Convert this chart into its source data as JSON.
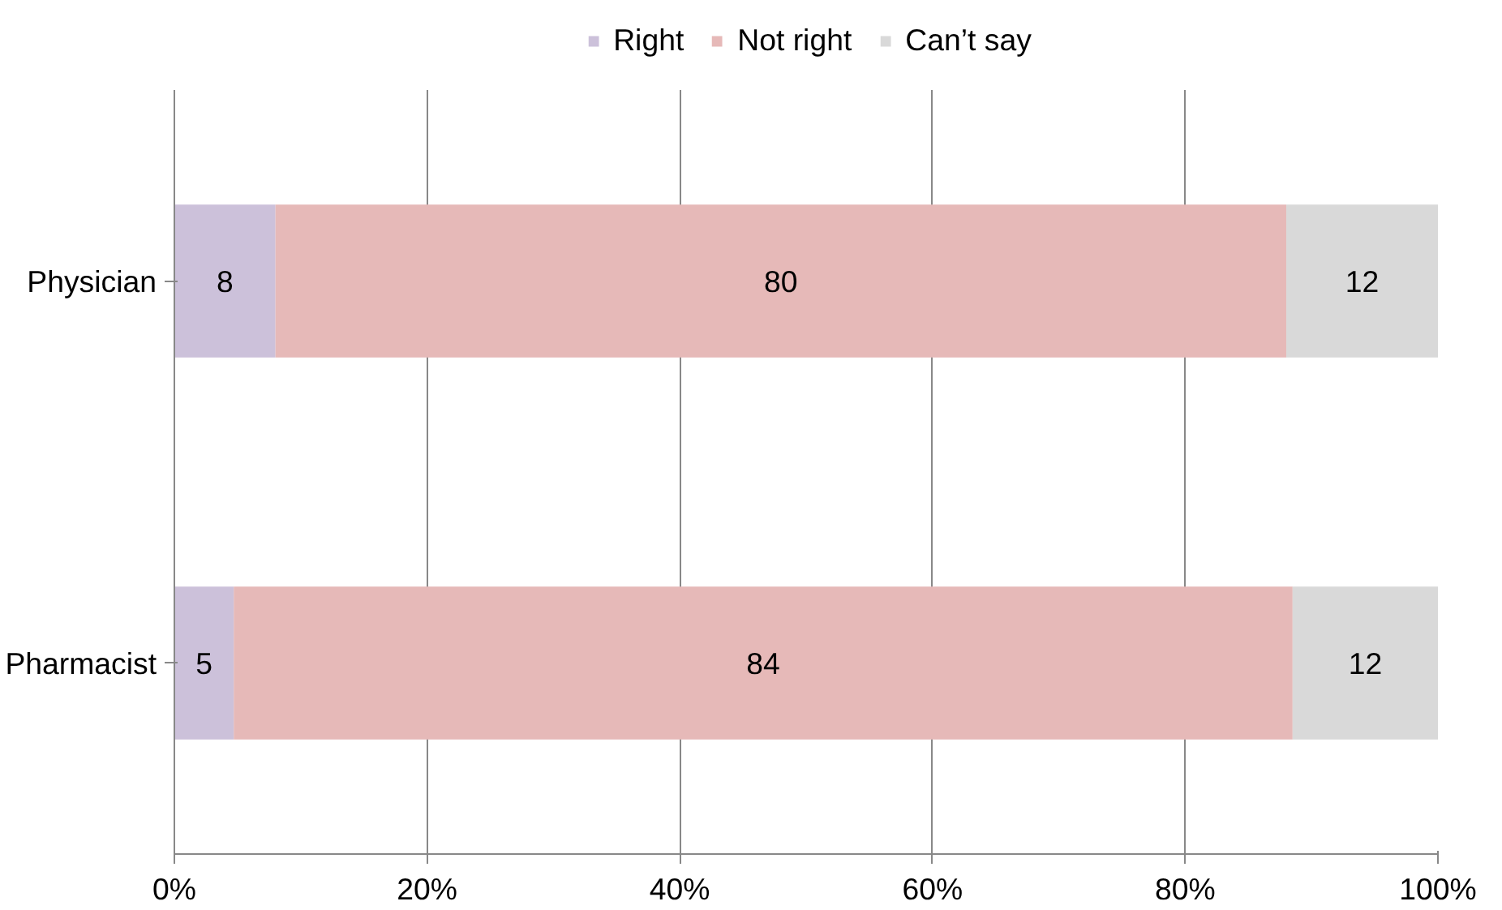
{
  "chart_data": {
    "type": "bar",
    "orientation": "horizontal",
    "stacked": true,
    "categories": [
      "Physician",
      "Pharmacist"
    ],
    "series": [
      {
        "name": "Right",
        "color": "#ccc1da",
        "values": [
          8,
          4.7
        ],
        "value_labels": [
          "8",
          "5"
        ]
      },
      {
        "name": "Not right",
        "color": "#e6b9b8",
        "values": [
          80,
          83.8
        ],
        "value_labels": [
          "80",
          "84"
        ]
      },
      {
        "name": "Can’t say",
        "color": "#d9d9d9",
        "values": [
          12,
          11.5
        ],
        "value_labels": [
          "12",
          "12"
        ]
      }
    ],
    "xlim": [
      0,
      100
    ],
    "xticks": [
      {
        "value": 0,
        "label": "0%"
      },
      {
        "value": 20,
        "label": "20%"
      },
      {
        "value": 40,
        "label": "40%"
      },
      {
        "value": 60,
        "label": "60%"
      },
      {
        "value": 80,
        "label": "80%"
      },
      {
        "value": 100,
        "label": "100%"
      }
    ],
    "grid": "x",
    "legend": "top"
  }
}
